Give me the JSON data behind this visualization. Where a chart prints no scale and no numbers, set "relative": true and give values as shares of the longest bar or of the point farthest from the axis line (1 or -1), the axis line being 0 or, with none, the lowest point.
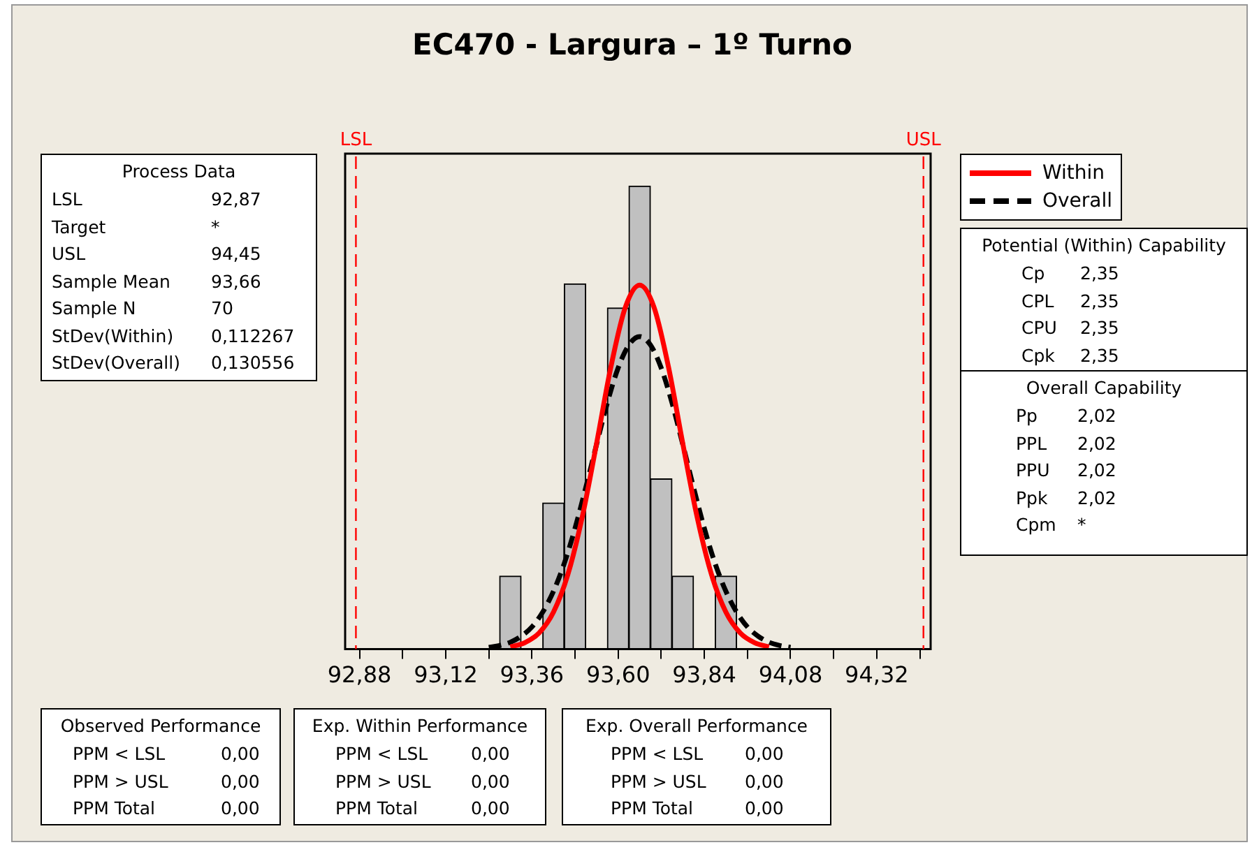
{
  "chart_data": [
    {
      "type": "histogram",
      "title": "EC470 -  Largura – 1º Turno",
      "relative": true,
      "bins": [
        93.27,
        93.33,
        93.39,
        93.45,
        93.51,
        93.57,
        93.63,
        93.69,
        93.75,
        93.81,
        93.87,
        93.93
      ],
      "values": [
        0.158,
        0,
        0.316,
        0.789,
        0,
        0.737,
        1,
        0.368,
        0.158,
        0,
        0.158
      ],
      "color": "#c0c0c0",
      "series": [
        {
          "type": "line",
          "name": "Within",
          "color": "#ff0000",
          "line_style": "solid",
          "x": [
            93.3,
            93.34,
            93.38,
            93.42,
            93.46,
            93.5,
            93.54,
            93.58,
            93.62,
            93.66,
            93.7,
            93.74,
            93.78,
            93.82,
            93.86,
            93.9,
            93.94,
            93.98,
            94.02
          ],
          "values": [
            0.005,
            0.014,
            0.035,
            0.08,
            0.161,
            0.285,
            0.444,
            0.61,
            0.738,
            0.786,
            0.738,
            0.61,
            0.444,
            0.285,
            0.161,
            0.08,
            0.035,
            0.014,
            0.005
          ]
        },
        {
          "type": "line",
          "name": "Overall",
          "color": "#000000",
          "line_style": "dashed",
          "x": [
            93.24,
            93.27,
            93.3,
            93.33,
            93.36,
            93.39,
            93.42,
            93.45,
            93.48,
            93.51,
            93.54,
            93.57,
            93.6,
            93.63,
            93.66,
            93.69,
            93.72,
            93.75,
            93.78,
            93.81,
            93.84,
            93.87,
            93.9,
            93.93,
            93.96,
            93.99,
            94.02,
            94.05,
            94.08
          ],
          "values": [
            0.004,
            0.008,
            0.015,
            0.028,
            0.048,
            0.08,
            0.125,
            0.185,
            0.261,
            0.349,
            0.442,
            0.532,
            0.607,
            0.657,
            0.675,
            0.657,
            0.607,
            0.532,
            0.442,
            0.349,
            0.261,
            0.185,
            0.125,
            0.08,
            0.048,
            0.028,
            0.015,
            0.008,
            0.004
          ]
        }
      ],
      "marker": "none",
      "legend": "top right",
      "xlim": [
        92.84,
        94.47
      ],
      "xticks": [
        {
          "value": 92.88,
          "label": "92,88"
        },
        {
          "value": 93.0,
          "label": null
        },
        {
          "value": 93.12,
          "label": "93,12"
        },
        {
          "value": 93.24,
          "label": null
        },
        {
          "value": 93.36,
          "label": "93,36"
        },
        {
          "value": 93.48,
          "label": null
        },
        {
          "value": 93.6,
          "label": "93,60"
        },
        {
          "value": 93.72,
          "label": null
        },
        {
          "value": 93.84,
          "label": "93,84"
        },
        {
          "value": 93.96,
          "label": null
        },
        {
          "value": 94.08,
          "label": "94,08"
        },
        {
          "value": 94.2,
          "label": null
        },
        {
          "value": 94.32,
          "label": "94,32"
        },
        {
          "value": 94.44,
          "label": null
        }
      ],
      "ref_lines": [
        {
          "axis": "x",
          "value": 92.87,
          "label": "LSL",
          "color": "#ff0000",
          "line_style": "dashed"
        },
        {
          "axis": "x",
          "value": 94.45,
          "label": "USL",
          "color": "#ff0000",
          "line_style": "dashed"
        }
      ]
    },
    {
      "type": "other",
      "title": "Process Data",
      "annotations": [
        "LSL\t92,87",
        "Target\t*",
        "USL\t94,45",
        "Sample Mean\t93,66",
        "Sample N\t70",
        "StDev(Within)\t0,112267",
        "StDev(Overall)\t0,130556"
      ]
    },
    {
      "type": "other",
      "title": "Potential (Within) Capability",
      "annotations": [
        "Cp\t2,35",
        "CPL\t2,35",
        "CPU\t2,35",
        "Cpk\t2,35"
      ]
    },
    {
      "type": "other",
      "title": "Overall Capability",
      "annotations": [
        "Pp\t2,02",
        "PPL\t2,02",
        "PPU\t2,02",
        "Ppk\t2,02",
        "Cpm\t*"
      ]
    },
    {
      "type": "other",
      "title": "Observed Performance",
      "annotations": [
        "PPM < LSL\t0,00",
        "PPM > USL\t0,00",
        "PPM Total\t0,00"
      ]
    },
    {
      "type": "other",
      "title": "Exp. Within Performance",
      "annotations": [
        "PPM < LSL\t0,00",
        "PPM > USL\t0,00",
        "PPM Total\t0,00"
      ]
    },
    {
      "type": "other",
      "title": "Exp. Overall Performance",
      "annotations": [
        "PPM < LSL\t0,00",
        "PPM > USL\t0,00",
        "PPM Total\t0,00"
      ]
    }
  ]
}
